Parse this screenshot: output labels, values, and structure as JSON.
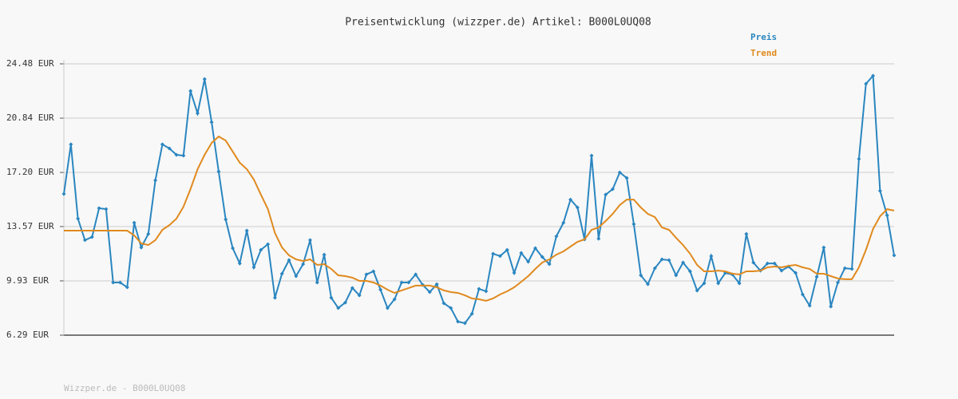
{
  "chart_data": {
    "type": "line",
    "title": "Preisentwicklung (wizzper.de) Artikel: B000L0UQ08",
    "footer": "Wizzper.de - B000L0UQ08",
    "ylim": [
      6.29,
      24.48
    ],
    "yticks": [
      {
        "value": 6.29,
        "label": "6.29 EUR"
      },
      {
        "value": 9.93,
        "label": "9.93 EUR"
      },
      {
        "value": 13.57,
        "label": "13.57 EUR"
      },
      {
        "value": 17.2,
        "label": "17.20 EUR"
      },
      {
        "value": 20.84,
        "label": "20.84 EUR"
      },
      {
        "value": 24.48,
        "label": "24.48 EUR"
      }
    ],
    "grid": true,
    "legend": "top-right",
    "series": [
      {
        "name": "Preis",
        "color": "#2a86c0",
        "markers": true,
        "values": [
          15.76,
          19.08,
          14.1,
          12.66,
          12.87,
          14.8,
          14.74,
          9.82,
          9.82,
          9.5,
          13.83,
          12.17,
          13.08,
          16.67,
          19.08,
          18.81,
          18.38,
          18.33,
          22.66,
          21.16,
          23.46,
          20.57,
          17.26,
          14.05,
          12.12,
          11.1,
          13.3,
          10.84,
          12.01,
          12.39,
          8.8,
          10.41,
          11.32,
          10.25,
          11.05,
          12.66,
          9.82,
          11.69,
          8.8,
          8.11,
          8.48,
          9.45,
          8.96,
          10.36,
          10.57,
          9.34,
          8.11,
          8.7,
          9.82,
          9.82,
          10.36,
          9.66,
          9.18,
          9.71,
          8.43,
          8.11,
          7.2,
          7.09,
          7.73,
          9.39,
          9.23,
          11.75,
          11.59,
          12.01,
          10.46,
          11.8,
          11.21,
          12.12,
          11.53,
          11.05,
          12.92,
          13.83,
          15.38,
          14.85,
          12.71,
          18.33,
          12.76,
          15.71,
          16.08,
          17.2,
          16.83,
          13.73,
          10.3,
          9.71,
          10.78,
          11.37,
          11.32,
          10.3,
          11.16,
          10.57,
          9.28,
          9.77,
          11.59,
          9.77,
          10.46,
          10.36,
          9.77,
          13.08,
          11.16,
          10.62,
          11.1,
          11.1,
          10.62,
          10.89,
          10.46,
          9.02,
          8.27,
          10.2,
          12.17,
          8.21,
          9.82,
          10.78,
          10.73,
          18.11,
          23.14,
          23.68,
          15.97,
          14.32,
          11.64
        ]
      },
      {
        "name": "Trend",
        "color": "#e08a1e",
        "markers": false,
        "values": [
          13.3,
          13.3,
          13.3,
          13.3,
          13.3,
          13.3,
          13.3,
          13.3,
          13.3,
          13.3,
          12.98,
          12.44,
          12.33,
          12.66,
          13.35,
          13.67,
          14.1,
          14.9,
          16.08,
          17.42,
          18.38,
          19.18,
          19.61,
          19.34,
          18.6,
          17.85,
          17.42,
          16.72,
          15.71,
          14.74,
          13.14,
          12.17,
          11.64,
          11.37,
          11.26,
          11.37,
          11.0,
          11.05,
          10.73,
          10.3,
          10.25,
          10.14,
          9.93,
          9.93,
          9.82,
          9.61,
          9.34,
          9.12,
          9.29,
          9.45,
          9.61,
          9.61,
          9.61,
          9.5,
          9.29,
          9.18,
          9.12,
          8.96,
          8.75,
          8.7,
          8.59,
          8.75,
          9.02,
          9.23,
          9.5,
          9.87,
          10.25,
          10.73,
          11.16,
          11.37,
          11.69,
          11.91,
          12.23,
          12.55,
          12.71,
          13.35,
          13.51,
          13.94,
          14.42,
          15.01,
          15.38,
          15.38,
          14.85,
          14.42,
          14.21,
          13.51,
          13.35,
          12.82,
          12.33,
          11.75,
          11.0,
          10.57,
          10.57,
          10.62,
          10.57,
          10.41,
          10.36,
          10.57,
          10.57,
          10.62,
          10.84,
          10.89,
          10.84,
          10.94,
          11.0,
          10.84,
          10.73,
          10.41,
          10.41,
          10.25,
          10.09,
          10.04,
          10.04,
          10.84,
          12.01,
          13.41,
          14.26,
          14.74,
          14.64
        ]
      }
    ]
  }
}
